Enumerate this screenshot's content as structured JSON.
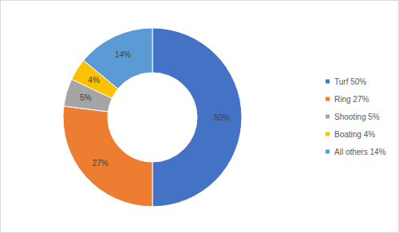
{
  "chart_data": {
    "type": "pie",
    "categories": [
      "Turf 50%",
      "Ring 27%",
      "Shooting 5%",
      "Boating 4%",
      "All others 14%"
    ],
    "values": [
      50,
      27,
      5,
      4,
      14
    ],
    "value_labels": [
      "50%",
      "27%",
      "5%",
      "4%",
      "14%"
    ],
    "colors": [
      "#4472c4",
      "#ed7d31",
      "#a5a5a5",
      "#ffc000",
      "#5b9bd5"
    ],
    "data_labels": true,
    "legend": "right"
  }
}
